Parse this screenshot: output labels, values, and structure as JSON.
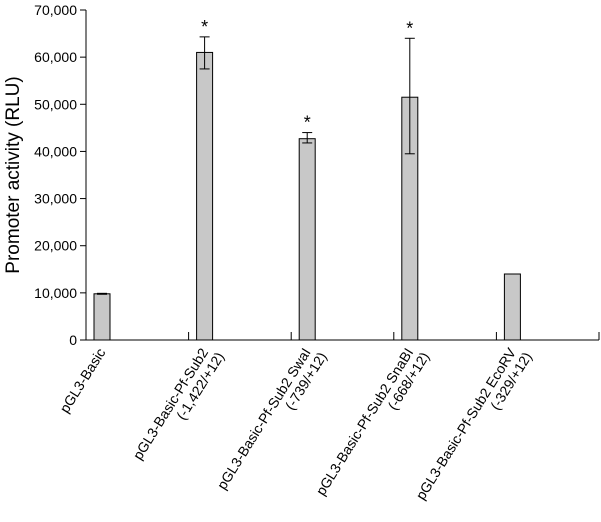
{
  "chart_data": {
    "type": "bar",
    "title": "",
    "xlabel": "",
    "ylabel": "Promoter activity (RLU)",
    "ylim": [
      0,
      70000
    ],
    "yticks": [
      "0",
      "10,000",
      "20,000",
      "30,000",
      "40,000",
      "50,000",
      "60,000",
      "70,000"
    ],
    "bar_color": "#c8c8c8",
    "categories": [
      {
        "line1": "pGL3-Basic",
        "line2": ""
      },
      {
        "line1": "pGL3-Basic-Pf-Sub2",
        "line2": "(-1,422/+12)"
      },
      {
        "line1": "pGL3-Basic-Pf-Sub2 SwaI",
        "line2": "(-739/+12)"
      },
      {
        "line1": "pGL3-Basic-Pf-Sub2 SnaBI",
        "line2": "(-668/+12)"
      },
      {
        "line1": "pGL3-Basic-Pf-Sub2 EcoRV",
        "line2": "(-329/+12)"
      }
    ],
    "values": [
      9800,
      61000,
      42700,
      51500,
      14000
    ],
    "error_low": [
      9700,
      57500,
      41800,
      39500,
      null
    ],
    "error_high": [
      9900,
      64300,
      44000,
      64000,
      null
    ],
    "significance": [
      "",
      "*",
      "*",
      "*",
      ""
    ]
  }
}
